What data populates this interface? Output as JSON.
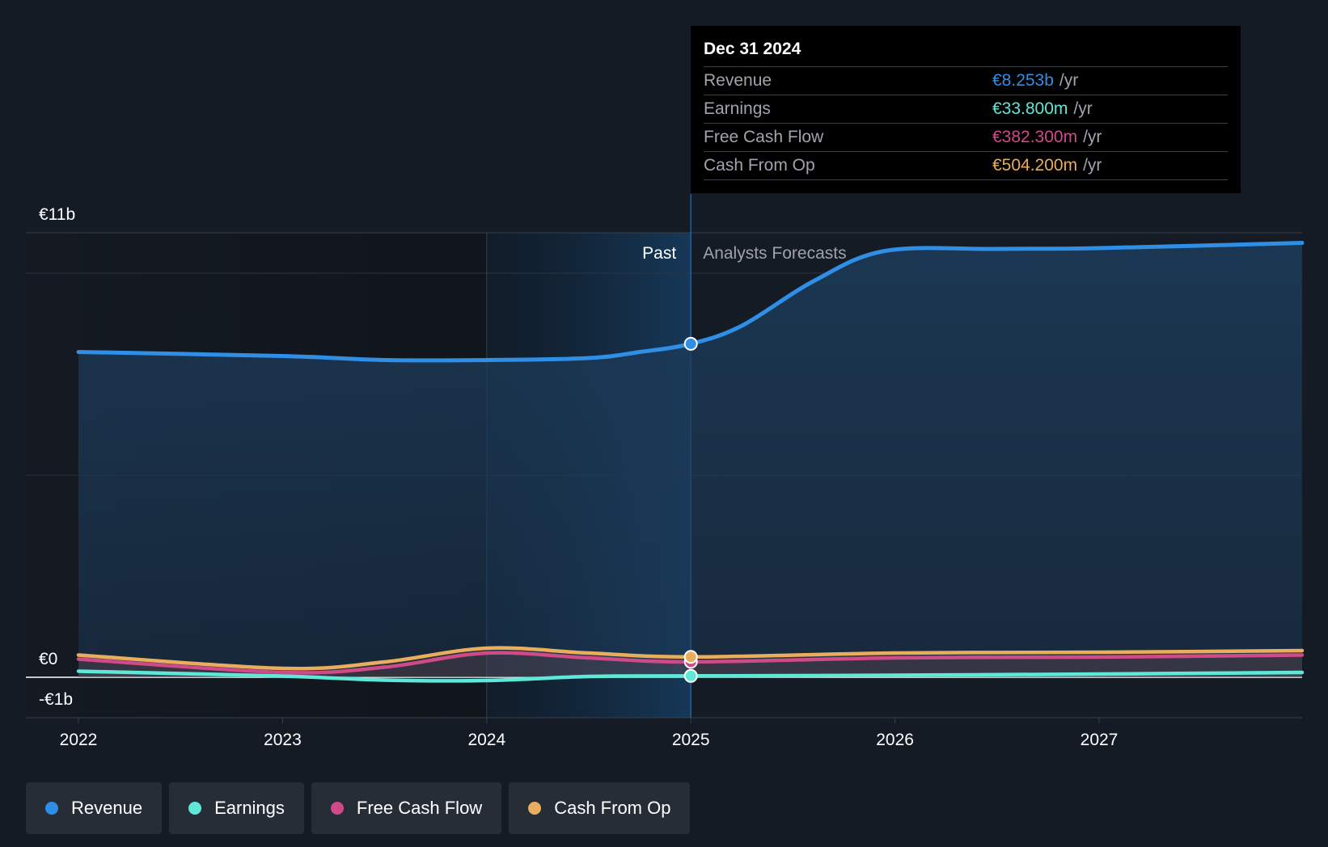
{
  "chart_data": {
    "type": "area",
    "x_ticks": [
      "2022",
      "2023",
      "2024",
      "2025",
      "2026",
      "2027"
    ],
    "y_ticks": [
      "€11b",
      "€0",
      "-€1b"
    ],
    "y_range_billions": [
      -1,
      11
    ],
    "region_labels": {
      "past": "Past",
      "forecast": "Analysts Forecasts"
    },
    "highlight_date": "2024-12-31",
    "series": [
      {
        "name": "Revenue",
        "color": "#2f8fe6",
        "filled": true,
        "points": [
          [
            2022.0,
            8.05
          ],
          [
            2023.0,
            7.95
          ],
          [
            2023.5,
            7.85
          ],
          [
            2024.0,
            7.85
          ],
          [
            2024.5,
            7.9
          ],
          [
            2024.75,
            8.05
          ],
          [
            2025.0,
            8.253
          ],
          [
            2025.25,
            8.7
          ],
          [
            2025.6,
            9.8
          ],
          [
            2025.95,
            10.55
          ],
          [
            2026.5,
            10.6
          ],
          [
            2027.0,
            10.62
          ],
          [
            2028.0,
            10.75
          ]
        ]
      },
      {
        "name": "Earnings",
        "color": "#5ee8d8",
        "filled": false,
        "points": [
          [
            2022.0,
            0.15
          ],
          [
            2023.0,
            0.03
          ],
          [
            2023.5,
            -0.07
          ],
          [
            2024.0,
            -0.08
          ],
          [
            2024.5,
            0.02
          ],
          [
            2025.0,
            0.0338
          ],
          [
            2026.0,
            0.05
          ],
          [
            2027.0,
            0.08
          ],
          [
            2028.0,
            0.12
          ]
        ]
      },
      {
        "name": "Free Cash Flow",
        "color": "#cf4a89",
        "filled": false,
        "points": [
          [
            2022.0,
            0.45
          ],
          [
            2023.0,
            0.12
          ],
          [
            2023.5,
            0.25
          ],
          [
            2024.0,
            0.6
          ],
          [
            2024.5,
            0.48
          ],
          [
            2025.0,
            0.3823
          ],
          [
            2026.0,
            0.48
          ],
          [
            2027.0,
            0.5
          ],
          [
            2028.0,
            0.55
          ]
        ]
      },
      {
        "name": "Cash From Op",
        "color": "#e8ad5d",
        "filled": false,
        "points": [
          [
            2022.0,
            0.55
          ],
          [
            2023.0,
            0.22
          ],
          [
            2023.5,
            0.38
          ],
          [
            2024.0,
            0.72
          ],
          [
            2024.5,
            0.6
          ],
          [
            2025.0,
            0.5042
          ],
          [
            2026.0,
            0.6
          ],
          [
            2027.0,
            0.62
          ],
          [
            2028.0,
            0.66
          ]
        ]
      }
    ]
  },
  "tooltip": {
    "date": "Dec 31 2024",
    "rows": [
      {
        "name": "Revenue",
        "value": "€8.253b",
        "unit": "/yr",
        "color": "#2f8fe6"
      },
      {
        "name": "Earnings",
        "value": "€33.800m",
        "unit": "/yr",
        "color": "#5ee8d8"
      },
      {
        "name": "Free Cash Flow",
        "value": "€382.300m",
        "unit": "/yr",
        "color": "#cf4a89"
      },
      {
        "name": "Cash From Op",
        "value": "€504.200m",
        "unit": "/yr",
        "color": "#e8ad5d"
      }
    ]
  },
  "legend": [
    {
      "label": "Revenue",
      "color": "#2f8fe6"
    },
    {
      "label": "Earnings",
      "color": "#5ee8d8"
    },
    {
      "label": "Free Cash Flow",
      "color": "#cf4a89"
    },
    {
      "label": "Cash From Op",
      "color": "#e8ad5d"
    }
  ]
}
